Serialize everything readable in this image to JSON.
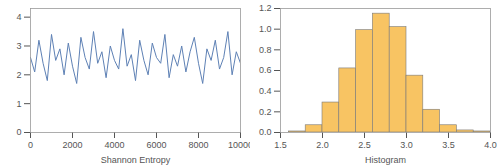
{
  "chart_data": [
    {
      "type": "line",
      "xlabel": "Shannon Entropy",
      "color": "#5e81b5",
      "x": [
        0,
        200,
        400,
        600,
        800,
        1000,
        1200,
        1400,
        1600,
        1800,
        2000,
        2200,
        2400,
        2600,
        2800,
        3000,
        3200,
        3400,
        3600,
        3800,
        4000,
        4200,
        4400,
        4600,
        4800,
        5000,
        5200,
        5400,
        5600,
        5800,
        6000,
        6200,
        6400,
        6600,
        6800,
        7000,
        7200,
        7400,
        7600,
        7800,
        8000,
        8200,
        8400,
        8600,
        8800,
        9000,
        9200,
        9400,
        9600,
        9800,
        10000
      ],
      "values": [
        2.6,
        2.1,
        3.2,
        2.4,
        1.8,
        3.4,
        2.5,
        2.9,
        2.0,
        3.1,
        2.3,
        1.7,
        3.3,
        2.6,
        2.2,
        3.5,
        2.4,
        2.8,
        1.9,
        3.0,
        2.5,
        2.2,
        3.6,
        2.3,
        2.7,
        1.8,
        3.2,
        2.5,
        2.0,
        3.1,
        2.6,
        2.4,
        3.4,
        1.9,
        2.7,
        2.3,
        3.0,
        2.1,
        2.8,
        3.3,
        2.4,
        1.7,
        2.9,
        2.5,
        3.2,
        2.2,
        2.6,
        3.5,
        2.0,
        2.8,
        2.4
      ],
      "xlim": [
        0,
        10000
      ],
      "ylim": [
        0,
        4.3
      ],
      "xticks": [
        0,
        2000,
        4000,
        6000,
        8000,
        10000
      ],
      "yticks": [
        {
          "value": 0,
          "label": "0"
        },
        1,
        2,
        3,
        4
      ]
    },
    {
      "type": "histogram",
      "xlabel": "Histogram",
      "color": "#f8c463",
      "bins": [
        1.6,
        1.8,
        2.0,
        2.2,
        2.4,
        2.6,
        2.8,
        3.0,
        3.2,
        3.4,
        3.6,
        3.8,
        4.0
      ],
      "values": [
        0.01,
        0.07,
        0.29,
        0.62,
        0.99,
        1.15,
        1.02,
        0.55,
        0.22,
        0.07,
        0.02,
        0.01
      ],
      "xlim": [
        1.5,
        4.0
      ],
      "ylim": [
        0,
        1.2
      ],
      "xticks": [
        1.5,
        {
          "value": 2,
          "label": "2.0"
        },
        2.5,
        {
          "value": 3,
          "label": "3.0"
        },
        3.5,
        {
          "value": 4,
          "label": "4.0"
        }
      ],
      "yticks": [
        {
          "value": 0,
          "label": "0.0"
        },
        0.2,
        0.4,
        0.6,
        0.8,
        {
          "value": 1,
          "label": "1.0"
        },
        1.2
      ]
    }
  ]
}
